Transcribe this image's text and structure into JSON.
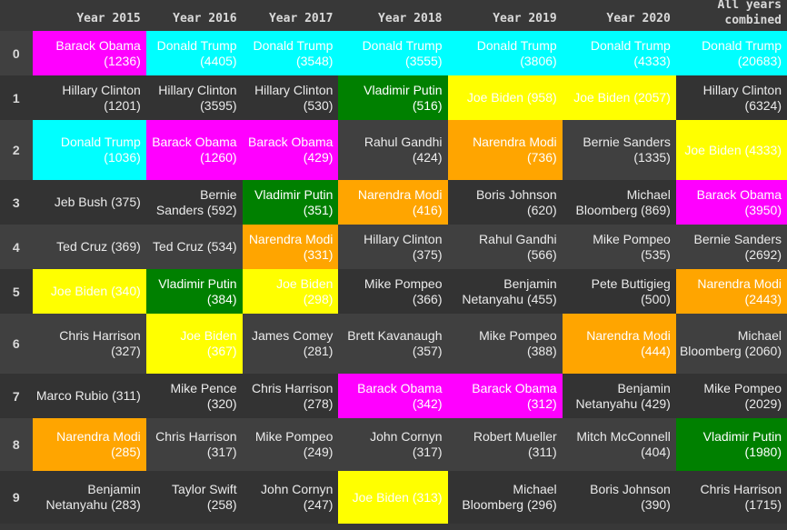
{
  "headers": [
    "Year 2015",
    "Year 2016",
    "Year 2017",
    "Year 2018",
    "Year 2019",
    "Year 2020",
    "All years combined"
  ],
  "colors": {
    "magenta": "#ff00ff",
    "cyan": "#00ffff",
    "green": "#008000",
    "yellow": "#ffff00",
    "orange": "#ffa500",
    "background_even": "#404040",
    "background_odd": "#333333",
    "text": "#ebebeb"
  },
  "rows": [
    {
      "index": "0",
      "cells": [
        {
          "name": "Barack Obama",
          "count": "(1236)",
          "highlight": "magenta"
        },
        {
          "name": "Donald Trump",
          "count": "(4405)",
          "highlight": "cyan"
        },
        {
          "name": "Donald Trump",
          "count": "(3548)",
          "highlight": "cyan"
        },
        {
          "name": "Donald Trump",
          "count": "(3555)",
          "highlight": "cyan"
        },
        {
          "name": "Donald Trump",
          "count": "(3806)",
          "highlight": "cyan"
        },
        {
          "name": "Donald Trump",
          "count": "(4333)",
          "highlight": "cyan"
        },
        {
          "name": "Donald Trump",
          "count": "(20683)",
          "highlight": "cyan"
        }
      ]
    },
    {
      "index": "1",
      "cells": [
        {
          "name": "Hillary Clinton",
          "count": "(1201)",
          "highlight": ""
        },
        {
          "name": "Hillary Clinton",
          "count": "(3595)",
          "highlight": ""
        },
        {
          "name": "Hillary Clinton",
          "count": "(530)",
          "highlight": ""
        },
        {
          "name": "Vladimir Putin",
          "count": "(516)",
          "highlight": "green"
        },
        {
          "name": "Joe Biden",
          "count": "(958)",
          "highlight": "yellow"
        },
        {
          "name": "Joe Biden",
          "count": "(2057)",
          "highlight": "yellow"
        },
        {
          "name": "Hillary Clinton",
          "count": "(6324)",
          "highlight": ""
        }
      ]
    },
    {
      "index": "2",
      "cells": [
        {
          "name": "Donald Trump",
          "count": "(1036)",
          "highlight": "cyan"
        },
        {
          "name": "Barack Obama",
          "count": "(1260)",
          "highlight": "magenta"
        },
        {
          "name": "Barack Obama",
          "count": "(429)",
          "highlight": "magenta"
        },
        {
          "name": "Rahul Gandhi",
          "count": "(424)",
          "highlight": ""
        },
        {
          "name": "Narendra Modi",
          "count": "(736)",
          "highlight": "orange"
        },
        {
          "name": "Bernie Sanders",
          "count": "(1335)",
          "highlight": ""
        },
        {
          "name": "Joe Biden",
          "count": "(4333)",
          "highlight": "yellow"
        }
      ]
    },
    {
      "index": "3",
      "cells": [
        {
          "name": "Jeb Bush",
          "count": "(375)",
          "highlight": ""
        },
        {
          "name": "Bernie Sanders",
          "count": "(592)",
          "highlight": ""
        },
        {
          "name": "Vladimir Putin",
          "count": "(351)",
          "highlight": "green"
        },
        {
          "name": "Narendra Modi",
          "count": "(416)",
          "highlight": "orange"
        },
        {
          "name": "Boris Johnson",
          "count": "(620)",
          "highlight": ""
        },
        {
          "name": "Michael Bloomberg",
          "count": "(869)",
          "highlight": ""
        },
        {
          "name": "Barack Obama",
          "count": "(3950)",
          "highlight": "magenta"
        }
      ]
    },
    {
      "index": "4",
      "cells": [
        {
          "name": "Ted Cruz",
          "count": "(369)",
          "highlight": ""
        },
        {
          "name": "Ted Cruz",
          "count": "(534)",
          "highlight": ""
        },
        {
          "name": "Narendra Modi",
          "count": "(331)",
          "highlight": "orange"
        },
        {
          "name": "Hillary Clinton",
          "count": "(375)",
          "highlight": ""
        },
        {
          "name": "Rahul Gandhi",
          "count": "(566)",
          "highlight": ""
        },
        {
          "name": "Mike Pompeo",
          "count": "(535)",
          "highlight": ""
        },
        {
          "name": "Bernie Sanders",
          "count": "(2692)",
          "highlight": ""
        }
      ]
    },
    {
      "index": "5",
      "cells": [
        {
          "name": "Joe Biden",
          "count": "(340)",
          "highlight": "yellow"
        },
        {
          "name": "Vladimir Putin",
          "count": "(384)",
          "highlight": "green"
        },
        {
          "name": "Joe Biden",
          "count": "(298)",
          "highlight": "yellow"
        },
        {
          "name": "Mike Pompeo",
          "count": "(366)",
          "highlight": ""
        },
        {
          "name": "Benjamin Netanyahu",
          "count": "(455)",
          "highlight": ""
        },
        {
          "name": "Pete Buttigieg",
          "count": "(500)",
          "highlight": ""
        },
        {
          "name": "Narendra Modi",
          "count": "(2443)",
          "highlight": "orange"
        }
      ]
    },
    {
      "index": "6",
      "cells": [
        {
          "name": "Chris Harrison",
          "count": "(327)",
          "highlight": ""
        },
        {
          "name": "Joe Biden",
          "count": "(367)",
          "highlight": "yellow"
        },
        {
          "name": "James Comey",
          "count": "(281)",
          "highlight": ""
        },
        {
          "name": "Brett Kavanaugh",
          "count": "(357)",
          "highlight": ""
        },
        {
          "name": "Mike Pompeo",
          "count": "(388)",
          "highlight": ""
        },
        {
          "name": "Narendra Modi",
          "count": "(444)",
          "highlight": "orange"
        },
        {
          "name": "Michael Bloomberg",
          "count": "(2060)",
          "highlight": ""
        }
      ]
    },
    {
      "index": "7",
      "cells": [
        {
          "name": "Marco Rubio",
          "count": "(311)",
          "highlight": ""
        },
        {
          "name": "Mike Pence",
          "count": "(320)",
          "highlight": ""
        },
        {
          "name": "Chris Harrison",
          "count": "(278)",
          "highlight": ""
        },
        {
          "name": "Barack Obama",
          "count": "(342)",
          "highlight": "magenta"
        },
        {
          "name": "Barack Obama",
          "count": "(312)",
          "highlight": "magenta"
        },
        {
          "name": "Benjamin Netanyahu",
          "count": "(429)",
          "highlight": ""
        },
        {
          "name": "Mike Pompeo",
          "count": "(2029)",
          "highlight": ""
        }
      ]
    },
    {
      "index": "8",
      "cells": [
        {
          "name": "Narendra Modi",
          "count": "(285)",
          "highlight": "orange"
        },
        {
          "name": "Chris Harrison",
          "count": "(317)",
          "highlight": ""
        },
        {
          "name": "Mike Pompeo",
          "count": "(249)",
          "highlight": ""
        },
        {
          "name": "John Cornyn",
          "count": "(317)",
          "highlight": ""
        },
        {
          "name": "Robert Mueller",
          "count": "(311)",
          "highlight": ""
        },
        {
          "name": "Mitch McConnell",
          "count": "(404)",
          "highlight": ""
        },
        {
          "name": "Vladimir Putin",
          "count": "(1980)",
          "highlight": "green"
        }
      ]
    },
    {
      "index": "9",
      "cells": [
        {
          "name": "Benjamin Netanyahu",
          "count": "(283)",
          "highlight": ""
        },
        {
          "name": "Taylor Swift",
          "count": "(258)",
          "highlight": ""
        },
        {
          "name": "John Cornyn",
          "count": "(247)",
          "highlight": ""
        },
        {
          "name": "Joe Biden",
          "count": "(313)",
          "highlight": "yellow"
        },
        {
          "name": "Michael Bloomberg",
          "count": "(296)",
          "highlight": ""
        },
        {
          "name": "Boris Johnson",
          "count": "(390)",
          "highlight": ""
        },
        {
          "name": "Chris Harrison",
          "count": "(1715)",
          "highlight": ""
        }
      ]
    }
  ]
}
